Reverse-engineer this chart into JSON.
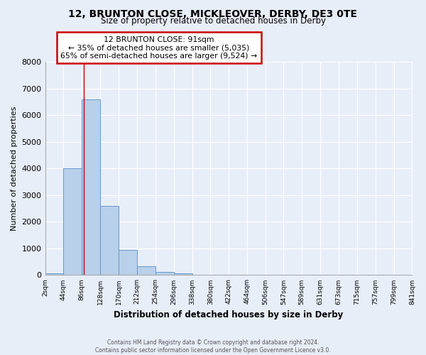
{
  "title1": "12, BRUNTON CLOSE, MICKLEOVER, DERBY, DE3 0TE",
  "title2": "Size of property relative to detached houses in Derby",
  "xlabel": "Distribution of detached houses by size in Derby",
  "ylabel": "Number of detached properties",
  "bin_edges": [
    2,
    44,
    86,
    128,
    170,
    212,
    254,
    296,
    338,
    380,
    422,
    464,
    506,
    547,
    589,
    631,
    673,
    715,
    757,
    799,
    841
  ],
  "bin_counts": [
    60,
    4000,
    6600,
    2600,
    950,
    320,
    130,
    60,
    0,
    0,
    0,
    0,
    0,
    0,
    0,
    0,
    0,
    0,
    0,
    0
  ],
  "bar_color": "#b8d0ea",
  "bar_edge_color": "#6699cc",
  "property_line_x": 91,
  "annotation_text1": "12 BRUNTON CLOSE: 91sqm",
  "annotation_text2": "← 35% of detached houses are smaller (5,035)",
  "annotation_text3": "65% of semi-detached houses are larger (9,524) →",
  "annotation_box_color": "white",
  "annotation_box_edge_color": "#cc0000",
  "vertical_line_color": "#cc0000",
  "ylim": [
    0,
    8000
  ],
  "yticks": [
    0,
    1000,
    2000,
    3000,
    4000,
    5000,
    6000,
    7000,
    8000
  ],
  "tick_labels": [
    "2sqm",
    "44sqm",
    "86sqm",
    "128sqm",
    "170sqm",
    "212sqm",
    "254sqm",
    "296sqm",
    "338sqm",
    "380sqm",
    "422sqm",
    "464sqm",
    "506sqm",
    "547sqm",
    "589sqm",
    "631sqm",
    "673sqm",
    "715sqm",
    "757sqm",
    "799sqm",
    "841sqm"
  ],
  "footer1": "Contains HM Land Registry data © Crown copyright and database right 2024.",
  "footer2": "Contains public sector information licensed under the Open Government Licence v3.0.",
  "background_color": "#e8eef8",
  "plot_background_color": "#e8eef8",
  "grid_color": "#ffffff"
}
